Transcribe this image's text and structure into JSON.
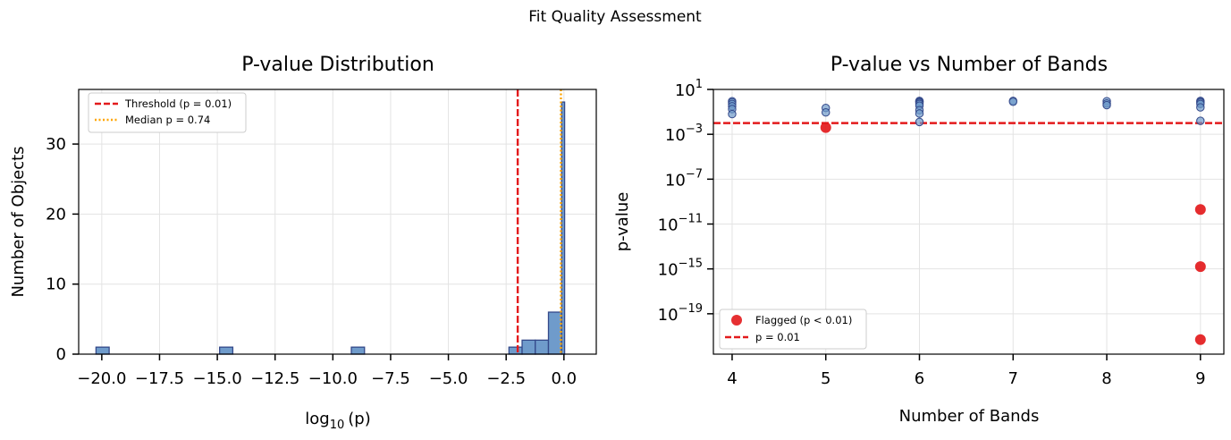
{
  "suptitle": "Fit Quality Assessment",
  "chart_data": [
    {
      "type": "bar",
      "title": "P-value Distribution",
      "xlabel_base": "log",
      "xlabel_sub": "10",
      "xlabel_arg": "(p)",
      "ylabel": "Number of Objects",
      "xlim": [
        -21.0,
        1.4
      ],
      "ylim": [
        0,
        37.8
      ],
      "x_ticks": [
        -20.0,
        -17.5,
        -15.0,
        -12.5,
        -10.0,
        -7.5,
        -5.0,
        -2.5,
        0.0
      ],
      "x_tick_labels": [
        "−20.0",
        "−17.5",
        "−15.0",
        "−12.5",
        "−10.0",
        "−7.5",
        "−5.0",
        "−2.5",
        "0.0"
      ],
      "y_ticks": [
        0,
        10,
        20,
        30
      ],
      "y_tick_labels": [
        "0",
        "10",
        "20",
        "30"
      ],
      "bins": [
        {
          "x0": -20.25,
          "x1": -19.68,
          "count": 1
        },
        {
          "x0": -14.9,
          "x1": -14.33,
          "count": 1
        },
        {
          "x0": -9.2,
          "x1": -8.63,
          "count": 1
        },
        {
          "x0": -2.38,
          "x1": -1.81,
          "count": 1
        },
        {
          "x0": -1.81,
          "x1": -1.24,
          "count": 2
        },
        {
          "x0": -1.24,
          "x1": -0.67,
          "count": 2
        },
        {
          "x0": -0.67,
          "x1": -0.1,
          "count": 6
        },
        {
          "x0": -0.1,
          "x1": 0.03,
          "count": 36
        }
      ],
      "threshold_log10p": -2.0,
      "median_log10p": -0.13,
      "legend_position": "upper-left",
      "legend": [
        {
          "label": "Threshold (p = 0.01)",
          "color": "#e31a1c",
          "style": "dashed"
        },
        {
          "label": "Median p = 0.74",
          "color": "#ffa500",
          "style": "dotted"
        }
      ],
      "bar_fill": "#6f9bcb",
      "bar_edge": "#34498a"
    },
    {
      "type": "scatter",
      "title": "P-value vs Number of Bands",
      "xlabel": "Number of Bands",
      "ylabel": "p-value",
      "yscale": "log",
      "xlim": [
        3.8,
        9.25
      ],
      "ylim_log10": [
        -22.6,
        1
      ],
      "x_ticks": [
        4,
        5,
        6,
        7,
        8,
        9
      ],
      "x_tick_labels": [
        "4",
        "5",
        "6",
        "7",
        "8",
        "9"
      ],
      "y_ticks_log10": [
        1,
        -3,
        -7,
        -11,
        -15,
        -19
      ],
      "y_tick_base": "10",
      "y_tick_exps": [
        "1",
        "−3",
        "−7",
        "−11",
        "−15",
        "−19"
      ],
      "points": [
        {
          "x": 4,
          "log10p": -0.05
        },
        {
          "x": 4,
          "log10p": -0.15
        },
        {
          "x": 4,
          "log10p": -0.3
        },
        {
          "x": 4,
          "log10p": -0.5
        },
        {
          "x": 4,
          "log10p": -0.75
        },
        {
          "x": 4,
          "log10p": -1.2
        },
        {
          "x": 5,
          "log10p": -0.65
        },
        {
          "x": 5,
          "log10p": -1.05
        },
        {
          "x": 6,
          "log10p": -0.02
        },
        {
          "x": 6,
          "log10p": -0.08
        },
        {
          "x": 6,
          "log10p": -0.12
        },
        {
          "x": 6,
          "log10p": -0.2
        },
        {
          "x": 6,
          "log10p": -0.3
        },
        {
          "x": 6,
          "log10p": -0.45
        },
        {
          "x": 6,
          "log10p": -0.85
        },
        {
          "x": 6,
          "log10p": -1.15
        },
        {
          "x": 6,
          "log10p": -1.9
        },
        {
          "x": 7,
          "log10p": -0.02
        },
        {
          "x": 7,
          "log10p": -0.1
        },
        {
          "x": 8,
          "log10p": -0.05
        },
        {
          "x": 8,
          "log10p": -0.25
        },
        {
          "x": 8,
          "log10p": -0.4
        },
        {
          "x": 9,
          "log10p": -0.02
        },
        {
          "x": 9,
          "log10p": -0.1
        },
        {
          "x": 9,
          "log10p": -0.18
        },
        {
          "x": 9,
          "log10p": -0.3
        },
        {
          "x": 9,
          "log10p": -0.6
        },
        {
          "x": 9,
          "log10p": -1.8
        }
      ],
      "flagged_points": [
        {
          "x": 5,
          "log10p": -2.4
        },
        {
          "x": 9,
          "log10p": -9.7
        },
        {
          "x": 9,
          "log10p": -14.8
        },
        {
          "x": 9,
          "log10p": -21.3
        }
      ],
      "threshold_log10p": -2.0,
      "legend_position": "lower-left",
      "legend": [
        {
          "label": "Flagged (p < 0.01)",
          "color": "#e31a1c",
          "style": "marker"
        },
        {
          "label": "p = 0.01",
          "color": "#e31a1c",
          "style": "dashed"
        }
      ],
      "point_color": "#6f9bcb",
      "point_edge": "#34498a"
    }
  ]
}
